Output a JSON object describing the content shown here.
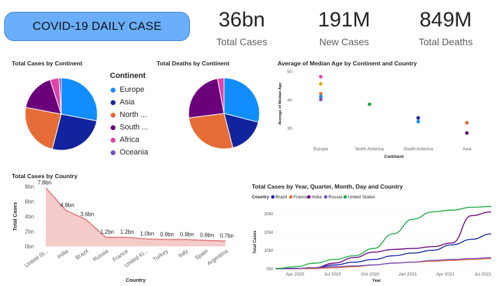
{
  "header": {
    "title": "COVID-19 DAILY CASE",
    "kpis": [
      {
        "value": "36bn",
        "label": "Total Cases"
      },
      {
        "value": "191M",
        "label": "New Cases"
      },
      {
        "value": "849M",
        "label": "Total Deaths"
      }
    ]
  },
  "colors": {
    "europe": "#118dff",
    "asia": "#12239e",
    "north_america": "#e66c37",
    "south_america": "#6b007b",
    "africa": "#e044a7",
    "oceania": "#744ec2",
    "brazil": "#12239e",
    "france": "#e66c37",
    "india": "#6b007b",
    "russia": "#744ec2",
    "united_states": "#1aab40",
    "area_fill": "#f4c2c2",
    "area_line": "#e07b7b"
  },
  "chart_data": [
    {
      "type": "pie",
      "title": "Total Cases by Continent",
      "legend_title": "Continent",
      "legend_placement": "right",
      "categories": [
        "Europe",
        "Asia",
        "North ...",
        "South ...",
        "Africa",
        "Oceania"
      ],
      "values": [
        28,
        26,
        24,
        17,
        4,
        1
      ]
    },
    {
      "type": "pie",
      "title": "Total Deaths by Continent",
      "categories": [
        "Europe",
        "Asia",
        "North America",
        "South America",
        "Africa",
        "Oceania"
      ],
      "values": [
        29,
        17,
        27,
        24,
        3,
        0
      ]
    },
    {
      "type": "scatter",
      "title": "Average of Median Age by Continent and Country",
      "xlabel": "Continent",
      "ylabel": "Average of Median Age",
      "categories": [
        "Europe",
        "North America",
        "South America",
        "Asia"
      ],
      "yticks": [
        30,
        40,
        50
      ],
      "ylim": [
        27,
        50
      ],
      "grid": false,
      "points": [
        {
          "x": "Europe",
          "y": 48,
          "color": "#e044a7"
        },
        {
          "x": "Europe",
          "y": 45.5,
          "color": "#d9b300"
        },
        {
          "x": "Europe",
          "y": 42,
          "color": "#e66c37"
        },
        {
          "x": "Europe",
          "y": 41,
          "color": "#118dff"
        },
        {
          "x": "Europe",
          "y": 40,
          "color": "#744ec2"
        },
        {
          "x": "North America",
          "y": 38.3,
          "color": "#1aab40"
        },
        {
          "x": "South America",
          "y": 33.5,
          "color": "#12239e"
        },
        {
          "x": "South America",
          "y": 32.2,
          "color": "#118dff"
        },
        {
          "x": "Asia",
          "y": 31.8,
          "color": "#e66c37"
        },
        {
          "x": "Asia",
          "y": 28.2,
          "color": "#6b007b"
        }
      ]
    },
    {
      "type": "area",
      "title": "Total Cases by Country",
      "xlabel": "Country",
      "ylabel": "Total Cases",
      "yticks": [
        "0bn",
        "2bn",
        "4bn",
        "6bn",
        "8bn"
      ],
      "ylim": [
        0,
        8
      ],
      "categories": [
        "United St...",
        "India",
        "Brazil",
        "Russia",
        "France",
        "United Ki...",
        "Turkey",
        "Italy",
        "Spain",
        "Argentina"
      ],
      "values": [
        7.8,
        4.8,
        3.6,
        1.2,
        1.2,
        1.0,
        0.9,
        0.9,
        0.8,
        0.7
      ],
      "data_labels": [
        "7.8bn",
        "4.8bn",
        "3.6bn",
        "1.2bn",
        "1.2bn",
        "1.0bn",
        "0.9bn",
        "0.9bn",
        "0.8bn",
        "0.7bn"
      ]
    },
    {
      "type": "line",
      "title": "Total Cases by Year, Quarter, Month, Day and Country",
      "legend_title": "Country",
      "legend_placement": "top-left",
      "xlabel": "Year",
      "ylabel": "Total Cases",
      "x_ticks": [
        "Apr 2020",
        "Jul 2020",
        "Oct 2020",
        "Jan 2021",
        "Apr 2021",
        "Jul 2021"
      ],
      "y_ticks": [
        "0M",
        "10M",
        "20M",
        "30M"
      ],
      "ylim": [
        0,
        35
      ],
      "series": [
        {
          "name": "Brazil",
          "values": [
            0,
            0,
            0.5,
            2,
            3.5,
            5,
            7,
            8.5,
            10,
            13,
            16,
            19
          ]
        },
        {
          "name": "France",
          "values": [
            0,
            0,
            0,
            0.5,
            1,
            2,
            3,
            3.5,
            4,
            4.5,
            5,
            5.5
          ]
        },
        {
          "name": "India",
          "values": [
            0,
            0,
            0.5,
            3,
            6,
            9,
            10.5,
            11,
            12,
            14,
            29,
            31
          ]
        },
        {
          "name": "Russia",
          "values": [
            0,
            0,
            0.5,
            1,
            1.5,
            2,
            3,
            3.5,
            4.5,
            5,
            5.5,
            6
          ]
        },
        {
          "name": "United States",
          "values": [
            0,
            1,
            3,
            5,
            7,
            11,
            19,
            27,
            31,
            32,
            33.5,
            34
          ]
        }
      ]
    }
  ]
}
